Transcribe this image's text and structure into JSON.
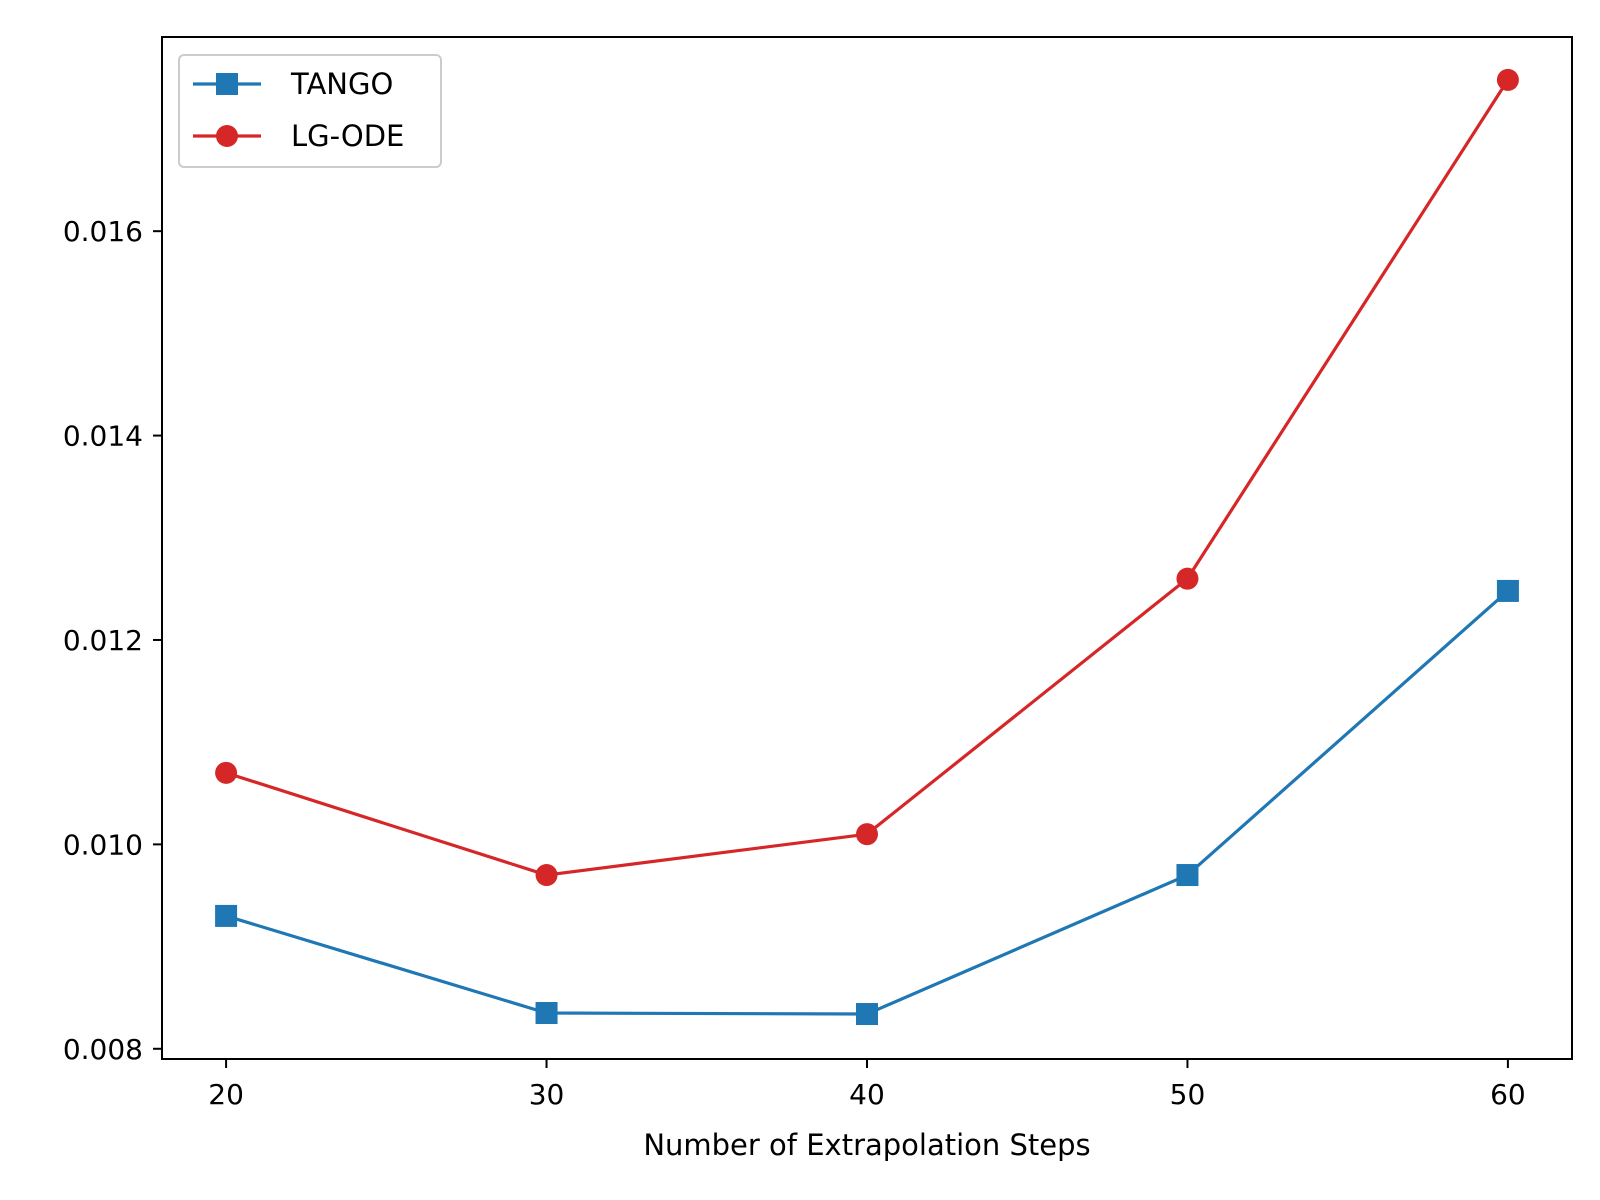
{
  "chart_data": {
    "type": "line",
    "title": "",
    "xlabel": "Number of Extrapolation Steps",
    "ylabel": "",
    "x": [
      20,
      30,
      40,
      50,
      60
    ],
    "xlim": [
      18,
      62
    ],
    "ylim": [
      0.0079,
      0.0179
    ],
    "xticks": [
      20,
      30,
      40,
      50,
      60
    ],
    "xtick_labels": [
      "20",
      "30",
      "40",
      "50",
      "60"
    ],
    "yticks": [
      0.008,
      0.01,
      0.012,
      0.014,
      0.016
    ],
    "ytick_labels": [
      "0.008",
      "0.010",
      "0.012",
      "0.014",
      "0.016"
    ],
    "grid": false,
    "legend_position": "top-left",
    "series": [
      {
        "name": "TANGO",
        "color": "#1f77b4",
        "marker": "square",
        "values": [
          0.0093,
          0.00835,
          0.00834,
          0.0097,
          0.01248
        ]
      },
      {
        "name": "LG-ODE",
        "color": "#d62728",
        "marker": "circle",
        "values": [
          0.0107,
          0.0097,
          0.0101,
          0.0126,
          0.01748
        ]
      }
    ]
  }
}
